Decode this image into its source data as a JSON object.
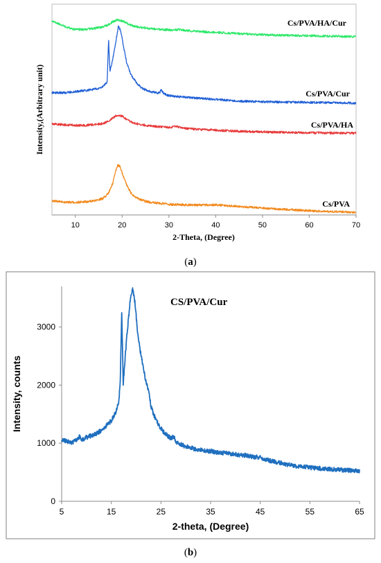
{
  "chart_data": [
    {
      "type": "line",
      "panel": "a",
      "caption": "(a)",
      "xlabel": "2-Theta, (Degree)",
      "ylabel": "Intensity,(Arbitrary unit)",
      "xlim": [
        5,
        70
      ],
      "xticks": [
        10,
        20,
        30,
        40,
        50,
        60,
        70
      ],
      "grid": false,
      "y_ticks_shown": false,
      "series": [
        {
          "name": "Cs/PVA/HA/Cur",
          "color": "#2ee86a",
          "x": [
            5,
            8,
            10,
            12,
            14,
            16,
            17,
            18,
            19,
            20,
            21,
            22,
            23,
            25,
            28,
            31,
            32,
            35,
            40,
            45,
            50,
            55,
            60,
            65,
            70
          ],
          "y": [
            0.92,
            0.891,
            0.88,
            0.88,
            0.885,
            0.892,
            0.903,
            0.917,
            0.926,
            0.92,
            0.91,
            0.9,
            0.893,
            0.887,
            0.88,
            0.877,
            0.879,
            0.872,
            0.866,
            0.86,
            0.855,
            0.852,
            0.85,
            0.848,
            0.846
          ]
        },
        {
          "name": "Cs/PVA/Cur",
          "color": "#1f5fd6",
          "x": [
            5,
            8,
            10,
            12,
            14,
            15,
            16,
            16.8,
            17.1,
            17.4,
            18,
            18.7,
            19.2,
            19.7,
            20.2,
            21,
            22,
            23,
            24,
            25,
            26,
            28,
            28.3,
            29,
            30,
            35,
            40,
            45,
            50,
            55,
            60,
            65,
            70
          ],
          "y": [
            0.58,
            0.58,
            0.585,
            0.59,
            0.596,
            0.6,
            0.61,
            0.63,
            0.833,
            0.68,
            0.74,
            0.83,
            0.895,
            0.874,
            0.81,
            0.72,
            0.66,
            0.63,
            0.605,
            0.593,
            0.585,
            0.578,
            0.592,
            0.574,
            0.565,
            0.556,
            0.548,
            0.54,
            0.537,
            0.535,
            0.534,
            0.532,
            0.53
          ]
        },
        {
          "name": "Cs/PVA/HA",
          "color": "#e83a3a",
          "x": [
            5,
            8,
            10,
            12,
            14,
            16,
            17,
            18,
            19,
            20,
            21,
            22,
            23,
            25,
            28,
            30,
            31.5,
            33,
            35,
            40,
            45,
            50,
            55,
            60,
            65,
            70
          ],
          "y": [
            0.432,
            0.427,
            0.425,
            0.425,
            0.428,
            0.434,
            0.445,
            0.46,
            0.474,
            0.468,
            0.452,
            0.44,
            0.433,
            0.425,
            0.418,
            0.415,
            0.42,
            0.412,
            0.408,
            0.402,
            0.397,
            0.394,
            0.392,
            0.39,
            0.389,
            0.388
          ]
        },
        {
          "name": "Cs/PVA",
          "color": "#f28a1e",
          "x": [
            5,
            8,
            10,
            12,
            14,
            15,
            16,
            17,
            18,
            18.5,
            19,
            19.5,
            20,
            21,
            22,
            23,
            24,
            25,
            26,
            28,
            30,
            35,
            40,
            45,
            50,
            55,
            60,
            65,
            70
          ],
          "y": [
            0.068,
            0.06,
            0.06,
            0.062,
            0.067,
            0.072,
            0.08,
            0.1,
            0.15,
            0.2,
            0.235,
            0.232,
            0.2,
            0.14,
            0.1,
            0.083,
            0.072,
            0.065,
            0.06,
            0.055,
            0.05,
            0.047,
            0.048,
            0.04,
            0.032,
            0.026,
            0.02,
            0.016,
            0.012
          ]
        }
      ]
    },
    {
      "type": "line",
      "panel": "b",
      "caption": "(b)",
      "title": "CS/PVA/Cur",
      "xlabel": "2-theta, (Degree)",
      "ylabel": "Intensity, counts",
      "xlim": [
        5,
        65
      ],
      "ylim": [
        0,
        3700
      ],
      "xticks": [
        5,
        15,
        25,
        35,
        45,
        55,
        65
      ],
      "yticks": [
        0,
        1000,
        2000,
        3000
      ],
      "grid": false,
      "series": [
        {
          "color": "#1f6fbf",
          "x": [
            5,
            6,
            7,
            8,
            8.7,
            9,
            10,
            11,
            12,
            13,
            14,
            15,
            15.5,
            16,
            16.5,
            16.8,
            17.1,
            17.4,
            17.8,
            18.3,
            18.8,
            19.3,
            19.8,
            20.3,
            21,
            22,
            22.6,
            23,
            24,
            25,
            26,
            27,
            27.7,
            28,
            29,
            30,
            32,
            35,
            38,
            40,
            42,
            44,
            45,
            46,
            48,
            50,
            52,
            55,
            58,
            60,
            62,
            65
          ],
          "y": [
            1060,
            1030,
            1010,
            1050,
            1130,
            1060,
            1100,
            1130,
            1170,
            1220,
            1300,
            1390,
            1470,
            1550,
            1700,
            2050,
            3280,
            2000,
            2500,
            3000,
            3450,
            3680,
            3400,
            2900,
            2500,
            2050,
            1900,
            1620,
            1400,
            1250,
            1150,
            1080,
            1120,
            1020,
            980,
            940,
            900,
            860,
            830,
            810,
            790,
            760,
            760,
            720,
            680,
            640,
            610,
            580,
            560,
            545,
            535,
            520
          ]
        }
      ]
    }
  ]
}
